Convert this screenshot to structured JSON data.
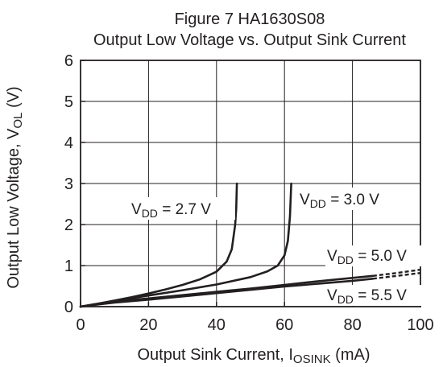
{
  "chart_data": {
    "type": "line",
    "title": "Figure 7  HA1630S08",
    "subtitle": "Output Low Voltage vs. Output Sink Current",
    "xlabel": {
      "main": "Output Sink Current,  I",
      "sub": "OSINK",
      "unit": "  (mA)"
    },
    "ylabel": {
      "main": "Output Low Voltage,  V",
      "sub": "OL",
      "unit": "  (V)"
    },
    "xlim": [
      0,
      100
    ],
    "ylim": [
      0,
      6
    ],
    "xticks": [
      "0",
      "20",
      "40",
      "60",
      "80",
      "100"
    ],
    "yticks": [
      "0",
      "1",
      "2",
      "3",
      "4",
      "5",
      "6"
    ],
    "grid": true,
    "series": [
      {
        "name": "V_DD = 2.7 V",
        "label": {
          "pre": "V",
          "sub": "DD",
          "post": " = 2.7 V"
        },
        "points": [
          [
            0,
            0
          ],
          [
            5,
            0.07
          ],
          [
            10,
            0.15
          ],
          [
            15,
            0.23
          ],
          [
            20,
            0.32
          ],
          [
            25,
            0.42
          ],
          [
            30,
            0.53
          ],
          [
            35,
            0.66
          ],
          [
            40,
            0.85
          ],
          [
            43,
            1.1
          ],
          [
            44.5,
            1.4
          ],
          [
            45.5,
            2.0
          ],
          [
            45.8,
            2.4
          ],
          [
            46,
            3.0
          ]
        ]
      },
      {
        "name": "V_DD = 3.0 V",
        "label": {
          "pre": "V",
          "sub": "DD",
          "post": " = 3.0 V"
        },
        "points": [
          [
            0,
            0
          ],
          [
            10,
            0.14
          ],
          [
            20,
            0.27
          ],
          [
            30,
            0.4
          ],
          [
            40,
            0.54
          ],
          [
            50,
            0.72
          ],
          [
            55,
            0.86
          ],
          [
            58,
            1.0
          ],
          [
            60,
            1.25
          ],
          [
            61,
            1.6
          ],
          [
            61.6,
            2.2
          ],
          [
            62,
            3.0
          ]
        ]
      },
      {
        "name": "V_DD = 5.0 V",
        "label": {
          "pre": "V",
          "sub": "DD",
          "post": " = 5.0 V"
        },
        "points": [
          [
            0,
            0
          ],
          [
            10,
            0.13
          ],
          [
            20,
            0.2
          ],
          [
            30,
            0.28
          ],
          [
            40,
            0.36
          ],
          [
            50,
            0.44
          ],
          [
            60,
            0.53
          ],
          [
            70,
            0.62
          ],
          [
            80,
            0.7
          ],
          [
            86,
            0.75
          ]
        ],
        "dashed_points": [
          [
            86,
            0.75
          ],
          [
            93,
            0.82
          ],
          [
            100,
            0.9
          ]
        ]
      },
      {
        "name": "V_DD = 5.5 V",
        "label": {
          "pre": "V",
          "sub": "DD",
          "post": " = 5.5 V"
        },
        "points": [
          [
            0,
            0
          ],
          [
            10,
            0.1
          ],
          [
            20,
            0.17
          ],
          [
            30,
            0.25
          ],
          [
            40,
            0.33
          ],
          [
            50,
            0.41
          ],
          [
            60,
            0.49
          ],
          [
            70,
            0.56
          ],
          [
            80,
            0.63
          ],
          [
            86,
            0.68
          ]
        ],
        "dashed_points": [
          [
            86,
            0.68
          ],
          [
            93,
            0.75
          ],
          [
            100,
            0.82
          ]
        ]
      }
    ]
  }
}
